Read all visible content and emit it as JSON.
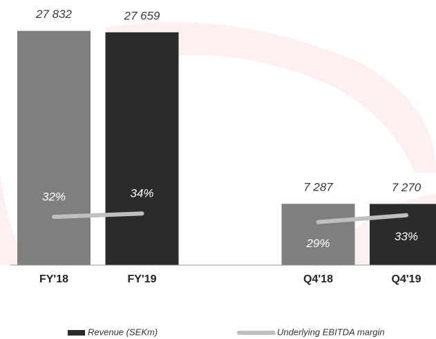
{
  "chart_data": {
    "type": "bar",
    "categories": [
      "FY'18",
      "FY'19",
      null,
      "Q4'18",
      "Q4'19"
    ],
    "series": [
      {
        "name": "Revenue (SEKm)",
        "color": "#2b2b2b",
        "bar_colors": [
          "#7f7f7f",
          "#2b2b2b",
          null,
          "#7f7f7f",
          "#2b2b2b"
        ],
        "values": [
          27832,
          27659,
          null,
          7287,
          7270
        ],
        "value_labels": [
          "27 832",
          "27 659",
          null,
          "7 287",
          "7 270"
        ]
      },
      {
        "name": "Underlying EBITDA margin",
        "type": "line",
        "axis": "y2",
        "color": "#bfbfbf",
        "values": [
          32,
          34,
          null,
          29,
          33
        ],
        "value_labels": [
          "32%",
          "34%",
          null,
          "29%",
          "33%"
        ]
      }
    ],
    "ylim": [
      0,
      31500
    ],
    "y2lim": [
      4,
      158
    ],
    "legend": "bottom"
  }
}
